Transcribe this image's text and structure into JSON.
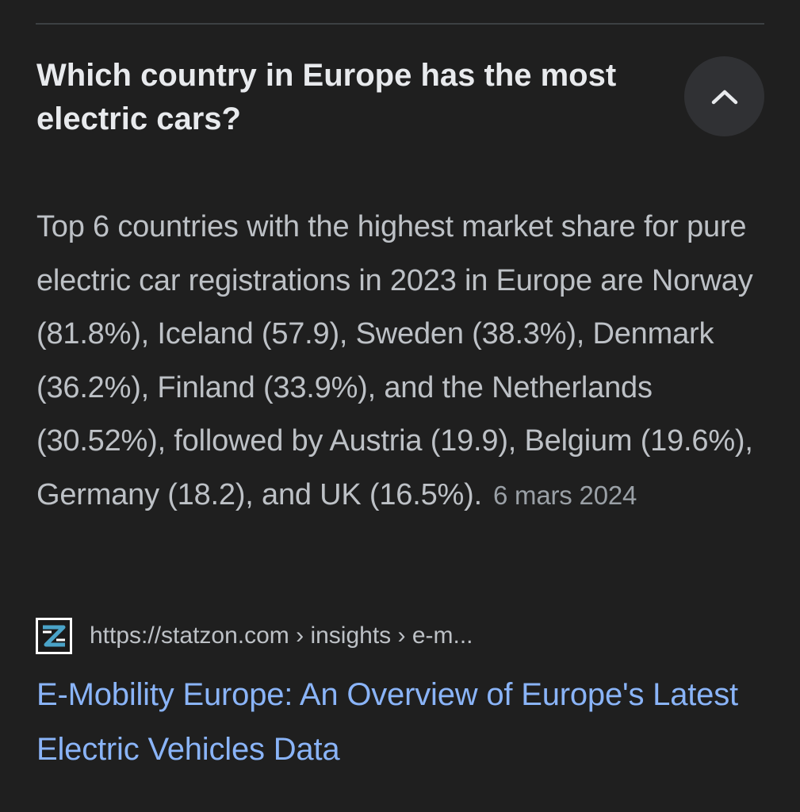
{
  "question": {
    "text": "Which country in Europe has the most electric cars?",
    "collapse_icon": "chevron-up-icon"
  },
  "answer": {
    "text": "Top 6 countries with the highest market share for pure electric car registrations in 2023 in Europe are Norway (81.8%), Iceland (57.9), Sweden (38.3%), Denmark (36.2%), Finland (33.9%), and the Netherlands (30.52%), followed by Austria (19.9), Belgium (19.6%), Germany (18.2), and UK (16.5%).",
    "date": "6 mars 2024"
  },
  "source": {
    "favicon": "statzon-logo-icon",
    "url": "https://statzon.com › insights › e-m..."
  },
  "result": {
    "title": "E-Mobility Europe: An Overview of Europe's Latest Electric Vehicles Data"
  },
  "colors": {
    "background": "#1f1f1f",
    "question_text": "#e8eaed",
    "answer_text": "#bdc1c6",
    "link": "#8ab4f8",
    "button_bg": "#303134"
  }
}
